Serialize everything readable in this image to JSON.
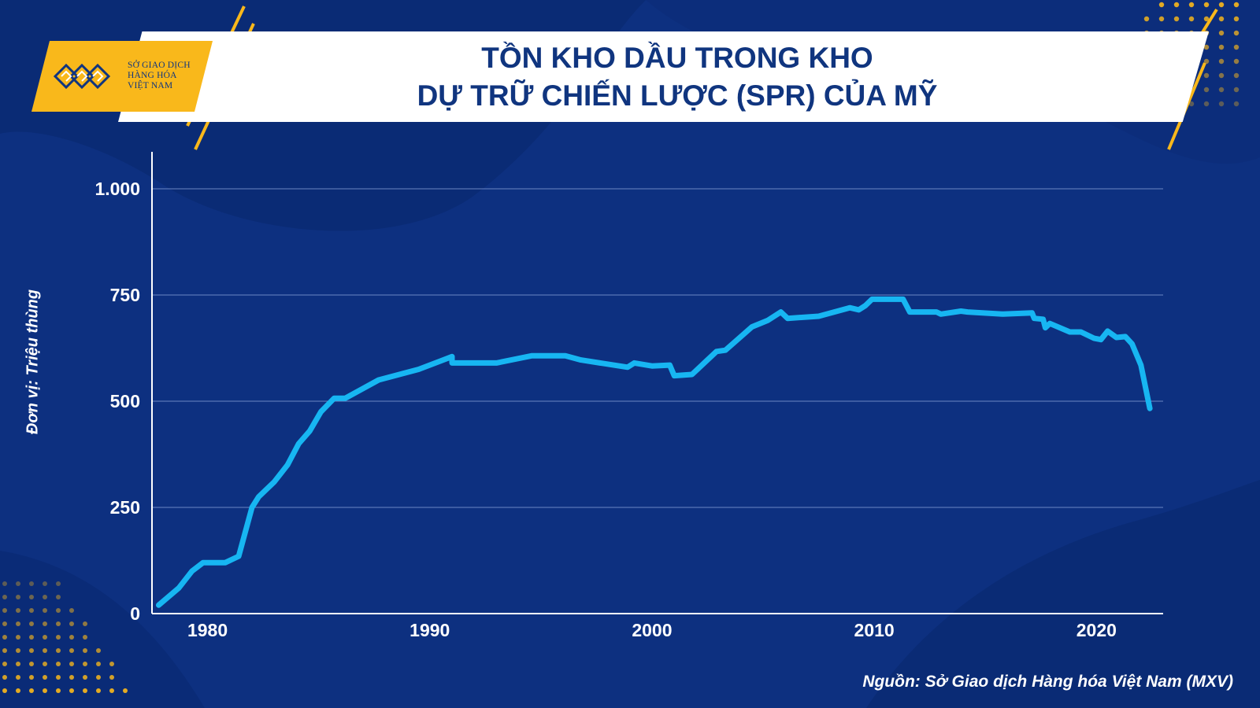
{
  "header": {
    "title_line1": "TỒN KHO DẦU TRONG KHO",
    "title_line2": "DỰ TRỮ CHIẾN LƯỢC (SPR) CỦA MỸ",
    "logo_line1": "SỞ GIAO DỊCH",
    "logo_line2": "HÀNG HÓA",
    "logo_line3": "VIỆT NAM",
    "logo_icon": "mxv-chevron-logo-icon"
  },
  "footer": {
    "source": "Nguồn: Sở Giao dịch Hàng hóa Việt Nam (MXV)"
  },
  "colors": {
    "background": "#0d3080",
    "banner": "#ffffff",
    "accent": "#f9b81b",
    "title": "#10357f",
    "line": "#17b6f2",
    "grid": "#6a86c4"
  },
  "chart_data": {
    "type": "line",
    "title": "TỒN KHO DẦU TRONG KHO DỰ TRỮ CHIẾN LƯỢC (SPR) CỦA MỸ",
    "xlabel": "",
    "ylabel": "Đơn vị: Triệu thùng",
    "xlim": [
      1977.5,
      2023
    ],
    "ylim": [
      0,
      1000
    ],
    "x_ticks": [
      1980,
      1990,
      2000,
      2010,
      2020
    ],
    "y_ticks": [
      0,
      250,
      500,
      750,
      1000
    ],
    "y_tick_labels": [
      "0",
      "250",
      "500",
      "750",
      "1.000"
    ],
    "grid": true,
    "legend": "none",
    "x": [
      1977.8,
      1978.7,
      1979.3,
      1979.8,
      1980.8,
      1981.4,
      1982.0,
      1982.3,
      1983.0,
      1983.6,
      1984.1,
      1984.6,
      1985.1,
      1985.7,
      1986.2,
      1987.7,
      1989.5,
      1990.6,
      1991.0,
      1991.0,
      1993.0,
      1994.6,
      1996.1,
      1996.8,
      1998.9,
      1999.2,
      2000.0,
      2000.8,
      2001.0,
      2001.8,
      2002.9,
      2003.3,
      2004.5,
      2005.2,
      2005.8,
      2006.1,
      2007.5,
      2008.9,
      2009.3,
      2009.6,
      2009.9,
      2011.3,
      2011.6,
      2012.8,
      2013.0,
      2013.9,
      2014.2,
      2015.8,
      2017.1,
      2017.2,
      2017.6,
      2017.7,
      2017.9,
      2018.8,
      2019.3,
      2019.9,
      2020.2,
      2020.5,
      2020.9,
      2021.3,
      2021.6,
      2022.0,
      2022.4
    ],
    "values": [
      20,
      60,
      100,
      120,
      120,
      135,
      250,
      275,
      310,
      350,
      400,
      430,
      475,
      507,
      507,
      550,
      575,
      597,
      605,
      590,
      590,
      607,
      607,
      597,
      580,
      590,
      583,
      585,
      560,
      563,
      617,
      620,
      675,
      690,
      710,
      695,
      700,
      720,
      715,
      725,
      740,
      740,
      710,
      710,
      705,
      712,
      710,
      705,
      708,
      695,
      693,
      673,
      683,
      663,
      663,
      648,
      645,
      665,
      650,
      652,
      635,
      585,
      483
    ]
  }
}
